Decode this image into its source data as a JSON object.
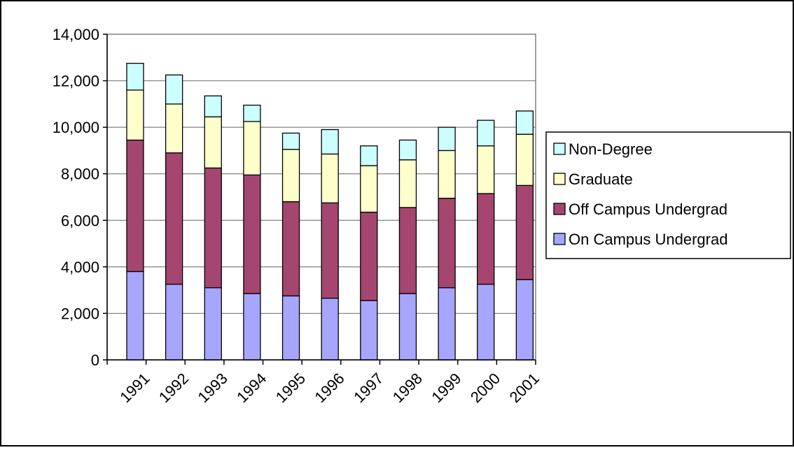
{
  "chart_data": {
    "type": "bar",
    "stacked": true,
    "title": "",
    "xlabel": "",
    "ylabel": "",
    "categories": [
      "1991",
      "1992",
      "1993",
      "1994",
      "1995",
      "1996",
      "1997",
      "1998",
      "1999",
      "2000",
      "2001"
    ],
    "series": [
      {
        "name": "On Campus Undergrad",
        "color": "#a6a6ff",
        "values": [
          3800,
          3250,
          3100,
          2850,
          2750,
          2650,
          2550,
          2850,
          3100,
          3250,
          3450
        ]
      },
      {
        "name": "Off Campus Undergrad",
        "color": "#a4466f",
        "values": [
          5650,
          5650,
          5150,
          5100,
          4050,
          4100,
          3800,
          3700,
          3850,
          3900,
          4050
        ]
      },
      {
        "name": "Graduate",
        "color": "#ffffcc",
        "values": [
          2150,
          2100,
          2200,
          2300,
          2250,
          2100,
          2000,
          2050,
          2050,
          2050,
          2200
        ]
      },
      {
        "name": "Non-Degree",
        "color": "#ccffff",
        "values": [
          1150,
          1250,
          900,
          700,
          700,
          1050,
          850,
          850,
          1000,
          1100,
          1000
        ]
      }
    ],
    "ylim": [
      0,
      14000
    ],
    "yticks": [
      0,
      2000,
      4000,
      6000,
      8000,
      10000,
      12000,
      14000
    ],
    "ytick_labels": [
      "0",
      "2,000",
      "4,000",
      "6,000",
      "8,000",
      "10,000",
      "12,000",
      "14,000"
    ],
    "grid": true,
    "legend": {
      "position": "right",
      "order": [
        "Non-Degree",
        "Graduate",
        "Off Campus Undergrad",
        "On Campus Undergrad"
      ]
    }
  }
}
